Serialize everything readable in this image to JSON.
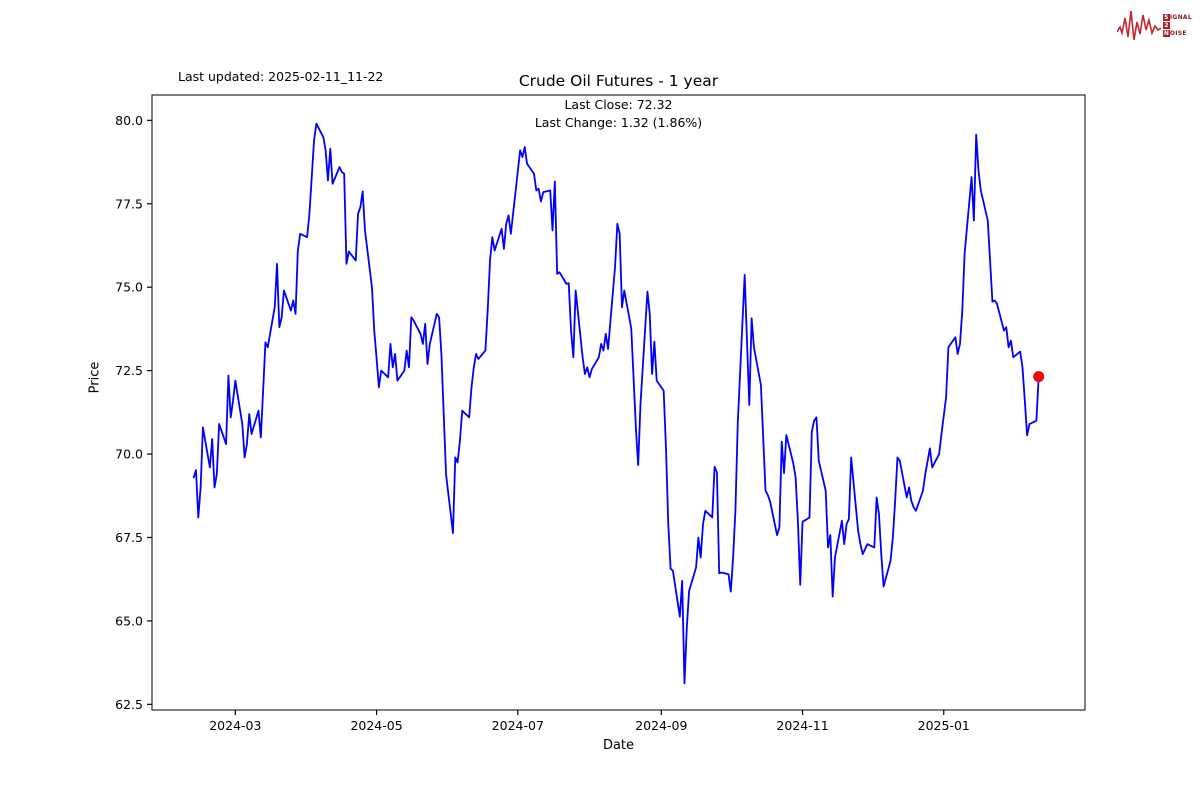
{
  "header": {
    "last_updated": "Last updated: 2025-02-11_11-22",
    "title": "Crude Oil Futures - 1 year",
    "annotation_line1": "Last Close: 72.32",
    "annotation_line2": "Last Change: 1.32 (1.86%)"
  },
  "logo": {
    "word1_first": "S",
    "word1_rest": "IGNAL",
    "word2_first": "2",
    "word2_rest": "",
    "word3_first": "N",
    "word3_rest": "OISE",
    "wave_color": "#c5262c",
    "text_color": "#8b1d22"
  },
  "chart_data": {
    "type": "line",
    "title": "Crude Oil Futures - 1 year",
    "xlabel": "Date",
    "ylabel": "Price",
    "last_close": 72.32,
    "last_change": 1.32,
    "last_change_pct": 1.86,
    "line_color": "#0000ff",
    "marker_color": "#ff0000",
    "ylim": [
      62.33,
      80.76
    ],
    "xlim": [
      "2024-01-25",
      "2025-03-03"
    ],
    "y_ticks": [
      62.5,
      65.0,
      67.5,
      70.0,
      72.5,
      75.0,
      77.5,
      80.0
    ],
    "x_tick_dates": [
      "2024-03-01",
      "2024-05-01",
      "2024-07-01",
      "2024-09-01",
      "2024-11-01",
      "2025-01-01"
    ],
    "x_ticks": [
      "2024-03",
      "2024-05",
      "2024-07",
      "2024-09",
      "2024-11",
      "2025-01"
    ],
    "grid": false,
    "legend": "none",
    "series": [
      {
        "name": "Price",
        "points": [
          [
            "2024-02-12",
            69.3
          ],
          [
            "2024-02-13",
            69.52
          ],
          [
            "2024-02-14",
            68.1
          ],
          [
            "2024-02-15",
            69.0
          ],
          [
            "2024-02-16",
            70.8
          ],
          [
            "2024-02-19",
            69.6
          ],
          [
            "2024-02-20",
            70.45
          ],
          [
            "2024-02-21",
            69.0
          ],
          [
            "2024-02-22",
            69.4
          ],
          [
            "2024-02-23",
            70.9
          ],
          [
            "2024-02-26",
            70.3
          ],
          [
            "2024-02-27",
            72.35
          ],
          [
            "2024-02-28",
            71.1
          ],
          [
            "2024-02-29",
            71.6
          ],
          [
            "2024-03-01",
            72.2
          ],
          [
            "2024-03-04",
            70.9
          ],
          [
            "2024-03-05",
            69.9
          ],
          [
            "2024-03-06",
            70.3
          ],
          [
            "2024-03-07",
            71.2
          ],
          [
            "2024-03-08",
            70.6
          ],
          [
            "2024-03-11",
            71.3
          ],
          [
            "2024-03-12",
            70.5
          ],
          [
            "2024-03-13",
            71.9
          ],
          [
            "2024-03-14",
            73.35
          ],
          [
            "2024-03-15",
            73.2
          ],
          [
            "2024-03-18",
            74.4
          ],
          [
            "2024-03-19",
            75.7
          ],
          [
            "2024-03-20",
            73.8
          ],
          [
            "2024-03-21",
            74.1
          ],
          [
            "2024-03-22",
            74.9
          ],
          [
            "2024-03-25",
            74.3
          ],
          [
            "2024-03-26",
            74.6
          ],
          [
            "2024-03-27",
            74.2
          ],
          [
            "2024-03-28",
            76.1
          ],
          [
            "2024-03-29",
            76.6
          ],
          [
            "2024-04-01",
            76.5
          ],
          [
            "2024-04-02",
            77.2
          ],
          [
            "2024-04-03",
            78.3
          ],
          [
            "2024-04-04",
            79.4
          ],
          [
            "2024-04-05",
            79.9
          ],
          [
            "2024-04-08",
            79.5
          ],
          [
            "2024-04-09",
            79.1
          ],
          [
            "2024-04-10",
            78.2
          ],
          [
            "2024-04-11",
            79.15
          ],
          [
            "2024-04-12",
            78.1
          ],
          [
            "2024-04-15",
            78.6
          ],
          [
            "2024-04-16",
            78.45
          ],
          [
            "2024-04-17",
            78.4
          ],
          [
            "2024-04-18",
            75.7
          ],
          [
            "2024-04-19",
            76.07
          ],
          [
            "2024-04-22",
            75.8
          ],
          [
            "2024-04-23",
            77.2
          ],
          [
            "2024-04-24",
            77.4
          ],
          [
            "2024-04-25",
            77.87
          ],
          [
            "2024-04-26",
            76.7
          ],
          [
            "2024-04-29",
            75.0
          ],
          [
            "2024-04-30",
            73.7
          ],
          [
            "2024-05-01",
            72.87
          ],
          [
            "2024-05-02",
            72.0
          ],
          [
            "2024-05-03",
            72.5
          ],
          [
            "2024-05-06",
            72.3
          ],
          [
            "2024-05-07",
            73.3
          ],
          [
            "2024-05-08",
            72.6
          ],
          [
            "2024-05-09",
            73.0
          ],
          [
            "2024-05-10",
            72.2
          ],
          [
            "2024-05-13",
            72.5
          ],
          [
            "2024-05-14",
            73.1
          ],
          [
            "2024-05-15",
            72.6
          ],
          [
            "2024-05-16",
            74.1
          ],
          [
            "2024-05-17",
            74.0
          ],
          [
            "2024-05-20",
            73.6
          ],
          [
            "2024-05-21",
            73.3
          ],
          [
            "2024-05-22",
            73.9
          ],
          [
            "2024-05-23",
            72.7
          ],
          [
            "2024-05-24",
            73.3
          ],
          [
            "2024-05-27",
            74.2
          ],
          [
            "2024-05-28",
            74.1
          ],
          [
            "2024-05-29",
            73.0
          ],
          [
            "2024-05-30",
            71.2
          ],
          [
            "2024-05-31",
            69.4
          ],
          [
            "2024-06-03",
            67.63
          ],
          [
            "2024-06-04",
            69.9
          ],
          [
            "2024-06-05",
            69.75
          ],
          [
            "2024-06-06",
            70.4
          ],
          [
            "2024-06-07",
            71.3
          ],
          [
            "2024-06-10",
            71.1
          ],
          [
            "2024-06-11",
            72.0
          ],
          [
            "2024-06-12",
            72.6
          ],
          [
            "2024-06-13",
            73.0
          ],
          [
            "2024-06-14",
            72.85
          ],
          [
            "2024-06-17",
            73.1
          ],
          [
            "2024-06-18",
            74.3
          ],
          [
            "2024-06-19",
            75.8
          ],
          [
            "2024-06-20",
            76.5
          ],
          [
            "2024-06-21",
            76.1
          ],
          [
            "2024-06-24",
            76.75
          ],
          [
            "2024-06-25",
            76.15
          ],
          [
            "2024-06-26",
            76.9
          ],
          [
            "2024-06-27",
            77.15
          ],
          [
            "2024-06-28",
            76.6
          ],
          [
            "2024-07-01",
            78.47
          ],
          [
            "2024-07-02",
            79.1
          ],
          [
            "2024-07-03",
            78.9
          ],
          [
            "2024-07-04",
            79.2
          ],
          [
            "2024-07-05",
            78.7
          ],
          [
            "2024-07-08",
            78.4
          ],
          [
            "2024-07-09",
            77.9
          ],
          [
            "2024-07-10",
            77.95
          ],
          [
            "2024-07-11",
            77.57
          ],
          [
            "2024-07-12",
            77.85
          ],
          [
            "2024-07-15",
            77.9
          ],
          [
            "2024-07-16",
            76.7
          ],
          [
            "2024-07-17",
            78.17
          ],
          [
            "2024-07-18",
            75.4
          ],
          [
            "2024-07-19",
            75.45
          ],
          [
            "2024-07-22",
            75.1
          ],
          [
            "2024-07-23",
            75.12
          ],
          [
            "2024-07-24",
            73.7
          ],
          [
            "2024-07-25",
            72.9
          ],
          [
            "2024-07-26",
            74.9
          ],
          [
            "2024-07-29",
            72.9
          ],
          [
            "2024-07-30",
            72.4
          ],
          [
            "2024-07-31",
            72.6
          ],
          [
            "2024-08-01",
            72.3
          ],
          [
            "2024-08-02",
            72.55
          ],
          [
            "2024-08-05",
            72.9
          ],
          [
            "2024-08-06",
            73.3
          ],
          [
            "2024-08-07",
            73.1
          ],
          [
            "2024-08-08",
            73.6
          ],
          [
            "2024-08-09",
            73.15
          ],
          [
            "2024-08-12",
            75.6
          ],
          [
            "2024-08-13",
            76.9
          ],
          [
            "2024-08-14",
            76.6
          ],
          [
            "2024-08-15",
            74.4
          ],
          [
            "2024-08-16",
            74.9
          ],
          [
            "2024-08-19",
            73.77
          ],
          [
            "2024-08-20",
            72.3
          ],
          [
            "2024-08-21",
            70.8
          ],
          [
            "2024-08-22",
            69.67
          ],
          [
            "2024-08-23",
            71.5
          ],
          [
            "2024-08-26",
            74.87
          ],
          [
            "2024-08-27",
            74.2
          ],
          [
            "2024-08-28",
            72.4
          ],
          [
            "2024-08-29",
            73.37
          ],
          [
            "2024-08-30",
            72.2
          ],
          [
            "2024-09-02",
            71.9
          ],
          [
            "2024-09-03",
            70.2
          ],
          [
            "2024-09-04",
            67.9
          ],
          [
            "2024-09-05",
            66.57
          ],
          [
            "2024-09-06",
            66.5
          ],
          [
            "2024-09-09",
            65.13
          ],
          [
            "2024-09-10",
            66.2
          ],
          [
            "2024-09-11",
            63.13
          ],
          [
            "2024-09-12",
            64.8
          ],
          [
            "2024-09-13",
            65.9
          ],
          [
            "2024-09-16",
            66.6
          ],
          [
            "2024-09-17",
            67.5
          ],
          [
            "2024-09-18",
            66.9
          ],
          [
            "2024-09-19",
            67.9
          ],
          [
            "2024-09-20",
            68.3
          ],
          [
            "2024-09-23",
            68.1
          ],
          [
            "2024-09-24",
            69.62
          ],
          [
            "2024-09-25",
            69.45
          ],
          [
            "2024-09-26",
            66.43
          ],
          [
            "2024-09-27",
            66.45
          ],
          [
            "2024-09-30",
            66.4
          ],
          [
            "2024-10-01",
            65.88
          ],
          [
            "2024-10-02",
            66.9
          ],
          [
            "2024-10-03",
            68.3
          ],
          [
            "2024-10-04",
            70.9
          ],
          [
            "2024-10-07",
            75.37
          ],
          [
            "2024-10-08",
            73.4
          ],
          [
            "2024-10-09",
            71.47
          ],
          [
            "2024-10-10",
            74.07
          ],
          [
            "2024-10-11",
            73.2
          ],
          [
            "2024-10-14",
            72.07
          ],
          [
            "2024-10-15",
            70.5
          ],
          [
            "2024-10-16",
            68.9
          ],
          [
            "2024-10-17",
            68.77
          ],
          [
            "2024-10-18",
            68.57
          ],
          [
            "2024-10-21",
            67.57
          ],
          [
            "2024-10-22",
            67.8
          ],
          [
            "2024-10-23",
            70.37
          ],
          [
            "2024-10-24",
            69.43
          ],
          [
            "2024-10-25",
            70.57
          ],
          [
            "2024-10-28",
            69.72
          ],
          [
            "2024-10-29",
            69.3
          ],
          [
            "2024-10-30",
            67.97
          ],
          [
            "2024-10-31",
            66.08
          ],
          [
            "2024-11-01",
            67.97
          ],
          [
            "2024-11-04",
            68.1
          ],
          [
            "2024-11-05",
            70.67
          ],
          [
            "2024-11-06",
            71.0
          ],
          [
            "2024-11-07",
            71.1
          ],
          [
            "2024-11-08",
            69.8
          ],
          [
            "2024-11-11",
            68.9
          ],
          [
            "2024-11-12",
            67.2
          ],
          [
            "2024-11-13",
            67.57
          ],
          [
            "2024-11-14",
            65.73
          ],
          [
            "2024-11-15",
            66.9
          ],
          [
            "2024-11-18",
            68.0
          ],
          [
            "2024-11-19",
            67.3
          ],
          [
            "2024-11-20",
            67.9
          ],
          [
            "2024-11-21",
            68.05
          ],
          [
            "2024-11-22",
            69.9
          ],
          [
            "2024-11-25",
            67.7
          ],
          [
            "2024-11-26",
            67.3
          ],
          [
            "2024-11-27",
            67.0
          ],
          [
            "2024-11-28",
            67.15
          ],
          [
            "2024-11-29",
            67.3
          ],
          [
            "2024-12-02",
            67.2
          ],
          [
            "2024-12-03",
            68.7
          ],
          [
            "2024-12-04",
            68.2
          ],
          [
            "2024-12-05",
            67.0
          ],
          [
            "2024-12-06",
            66.03
          ],
          [
            "2024-12-09",
            66.8
          ],
          [
            "2024-12-10",
            67.5
          ],
          [
            "2024-12-11",
            68.6
          ],
          [
            "2024-12-12",
            69.9
          ],
          [
            "2024-12-13",
            69.8
          ],
          [
            "2024-12-16",
            68.7
          ],
          [
            "2024-12-17",
            69.0
          ],
          [
            "2024-12-18",
            68.6
          ],
          [
            "2024-12-19",
            68.4
          ],
          [
            "2024-12-20",
            68.3
          ],
          [
            "2024-12-23",
            68.9
          ],
          [
            "2024-12-24",
            69.4
          ],
          [
            "2024-12-26",
            70.17
          ],
          [
            "2024-12-27",
            69.6
          ],
          [
            "2024-12-30",
            70.0
          ],
          [
            "2024-12-31",
            70.6
          ],
          [
            "2025-01-02",
            71.7
          ],
          [
            "2025-01-03",
            73.2
          ],
          [
            "2025-01-06",
            73.5
          ],
          [
            "2025-01-07",
            73.0
          ],
          [
            "2025-01-08",
            73.3
          ],
          [
            "2025-01-09",
            74.3
          ],
          [
            "2025-01-10",
            76.0
          ],
          [
            "2025-01-13",
            78.3
          ],
          [
            "2025-01-14",
            77.0
          ],
          [
            "2025-01-15",
            79.57
          ],
          [
            "2025-01-16",
            78.5
          ],
          [
            "2025-01-17",
            77.9
          ],
          [
            "2025-01-20",
            77.0
          ],
          [
            "2025-01-21",
            75.8
          ],
          [
            "2025-01-22",
            74.57
          ],
          [
            "2025-01-23",
            74.6
          ],
          [
            "2025-01-24",
            74.5
          ],
          [
            "2025-01-27",
            73.7
          ],
          [
            "2025-01-28",
            73.8
          ],
          [
            "2025-01-29",
            73.2
          ],
          [
            "2025-01-30",
            73.4
          ],
          [
            "2025-01-31",
            72.9
          ],
          [
            "2025-02-03",
            73.07
          ],
          [
            "2025-02-04",
            72.6
          ],
          [
            "2025-02-05",
            71.6
          ],
          [
            "2025-02-06",
            70.56
          ],
          [
            "2025-02-07",
            70.9
          ],
          [
            "2025-02-10",
            71.0
          ],
          [
            "2025-02-11",
            72.32
          ]
        ]
      }
    ]
  }
}
